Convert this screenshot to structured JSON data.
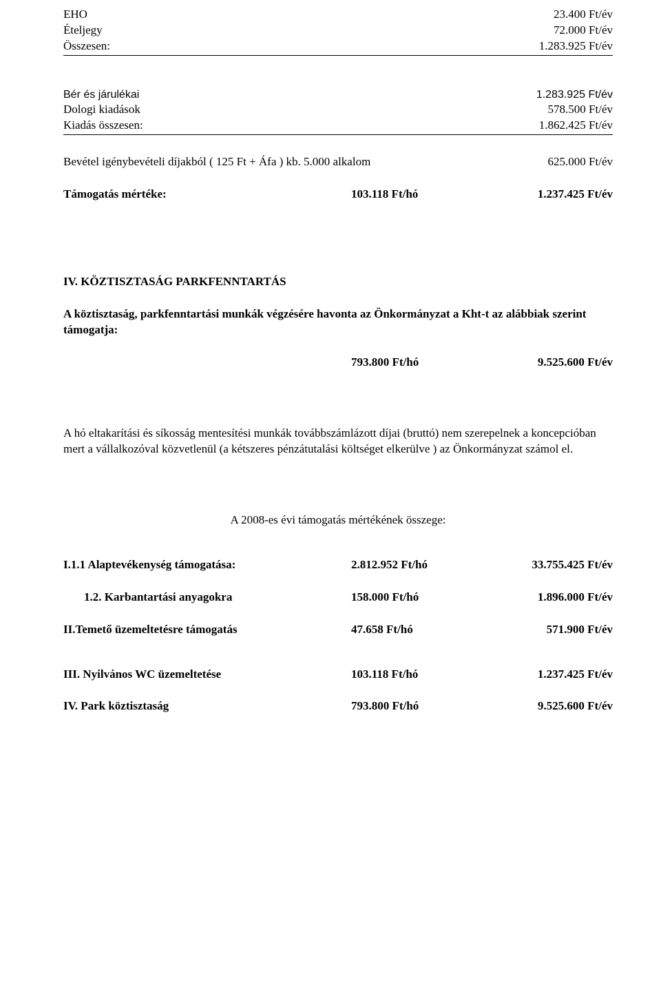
{
  "topRows": {
    "eho": {
      "label": "EHO",
      "value": "23.400 Ft/év"
    },
    "eteljegy": {
      "label": "Ételjegy",
      "value": "72.000 Ft/év"
    },
    "osszesen": {
      "label": "Összesen:",
      "value": "1.283.925 Ft/év"
    }
  },
  "costBlock": {
    "ber": {
      "label": "Bér és járulékai",
      "value": "1.283.925 Ft/év"
    },
    "dologi": {
      "label": "Dologi kiadások",
      "value": "578.500 Ft/év"
    },
    "kiadas": {
      "label": "Kiadás összesen:",
      "value": "1.862.425 Ft/év"
    }
  },
  "bevetel": {
    "label": "Bevétel igénybevételi díjakból ( 125 Ft + Áfa ) kb. 5.000 alkalom",
    "value": "625.000 Ft/év"
  },
  "tamogatas": {
    "label": "Támogatás mértéke:",
    "mid": "103.118 Ft/hó",
    "right": "1.237.425 Ft/év"
  },
  "section4": {
    "heading": "IV. KÖZTISZTASÁG  PARKFENNTARTÁS",
    "intro": "A  köztisztaság, parkfenntartási munkák végzésére havonta az Önkormányzat a Kht-t az alábbiak szerint támogatja:",
    "ftho": "793.800 Ft/hó",
    "ftev": "9.525.600 Ft/év",
    "para": "A  hó eltakarítási és síkosság mentesítési munkák továbbszámlázott díjai (bruttó) nem szerepelnek a koncepcióban mert a vállalkozóval közvetlenül (a kétszeres pénzátutalási költséget elkerülve ) az Önkormányzat számol el."
  },
  "summaryHeading": "A 2008-es évi támogatás mértékének összege:",
  "summary": {
    "i11": {
      "label": "I.1.1 Alaptevékenység támogatása:",
      "mid": "2.812.952 Ft/hó",
      "right": "33.755.425 Ft/év"
    },
    "i12": {
      "label": "1.2. Karbantartási anyagokra",
      "mid": "158.000 Ft/hó",
      "right": "1.896.000 Ft/év"
    },
    "ii": {
      "label": "II.Temető üzemeltetésre támogatás",
      "mid": "47.658 Ft/hó",
      "right": "571.900 Ft/év"
    },
    "iii": {
      "label": "III.  Nyilvános WC üzemeltetése",
      "mid": "103.118 Ft/hó",
      "right": "1.237.425 Ft/év"
    },
    "iv": {
      "label": "IV. Park köztisztaság",
      "mid": "793.800 Ft/hó",
      "right": "9.525.600 Ft/év"
    }
  }
}
